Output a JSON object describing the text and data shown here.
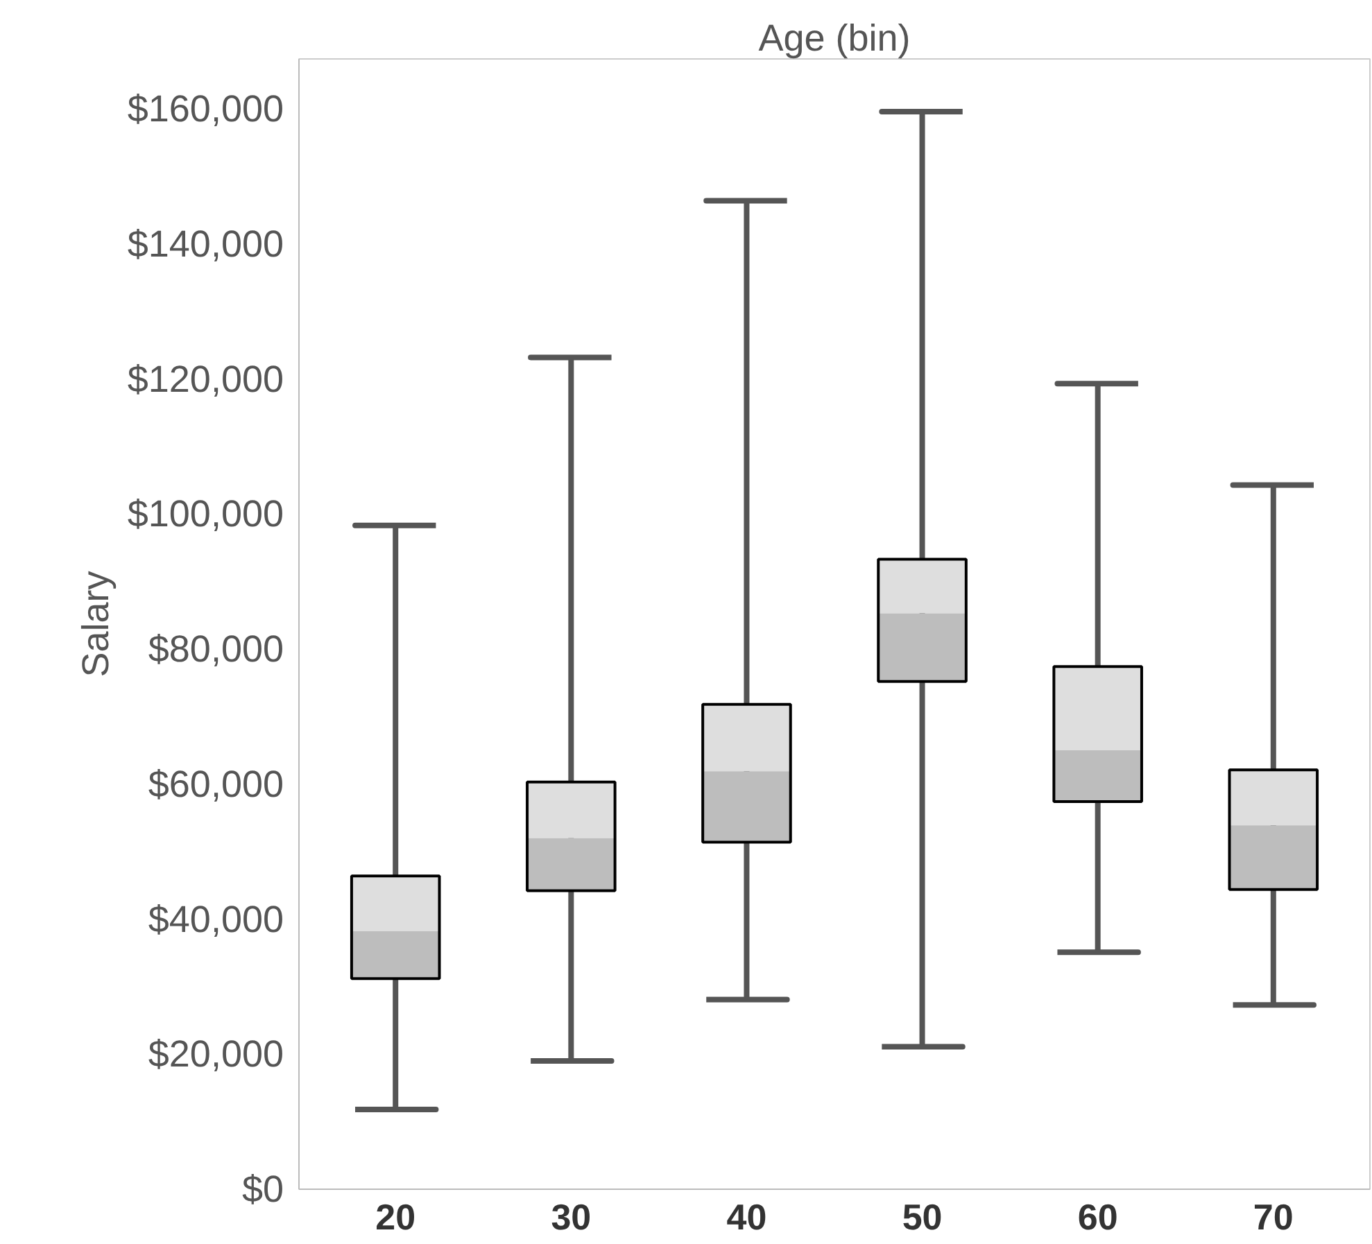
{
  "chart_data": {
    "type": "box",
    "xlabel": "Age (bin)",
    "ylabel": "Salary",
    "categories": [
      "20",
      "30",
      "40",
      "50",
      "60",
      "70"
    ],
    "series": [
      {
        "color": "#bdbdbd",
        "boxes": [
          {
            "low": 11800,
            "q1": 31200,
            "median": 38200,
            "q3": 46400,
            "high": 98300
          },
          {
            "low": 19000,
            "q1": 44200,
            "median": 52000,
            "q3": 60300,
            "high": 123200
          },
          {
            "low": 28100,
            "q1": 51400,
            "median": 61900,
            "q3": 71800,
            "high": 146400
          },
          {
            "low": 21100,
            "q1": 75200,
            "median": 85300,
            "q3": 93300,
            "high": 159600
          },
          {
            "low": 35100,
            "q1": 57400,
            "median": 65000,
            "q3": 77400,
            "high": 119300
          },
          {
            "low": 27300,
            "q1": 44400,
            "median": 53900,
            "q3": 62100,
            "high": 104300
          }
        ]
      }
    ],
    "ylim": [
      0,
      167400
    ],
    "yticks": [
      {
        "value": 0,
        "label": "$0"
      },
      {
        "value": 20000,
        "label": "$20,000"
      },
      {
        "value": 40000,
        "label": "$40,000"
      },
      {
        "value": 60000,
        "label": "$60,000"
      },
      {
        "value": 80000,
        "label": "$80,000"
      },
      {
        "value": 100000,
        "label": "$100,000"
      },
      {
        "value": 120000,
        "label": "$120,000"
      },
      {
        "value": 140000,
        "label": "$140,000"
      },
      {
        "value": 160000,
        "label": "$160,000"
      }
    ],
    "grid": false
  }
}
